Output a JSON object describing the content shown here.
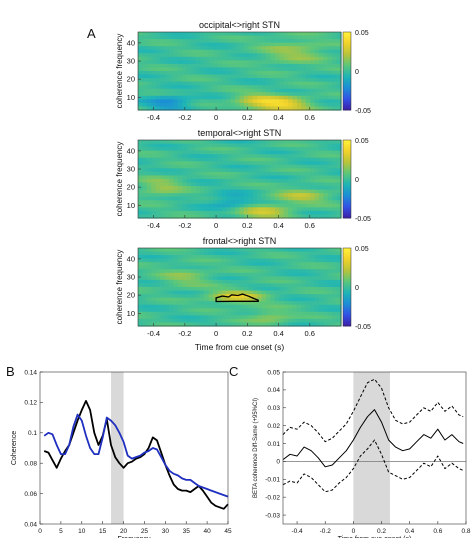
{
  "figure": {
    "panel_labels": [
      "A",
      "B",
      "C"
    ],
    "heatmap_colorbar": {
      "ticks": [
        "0.05",
        "0",
        "-0.05"
      ],
      "colormap": [
        "#3b1fa8",
        "#3352e6",
        "#1c8ed6",
        "#1fb5b5",
        "#5cc77a",
        "#b9c43a",
        "#f2d22b",
        "#fff23a"
      ]
    }
  },
  "chart_data": [
    {
      "type": "heatmap",
      "title": "occipital<>right STN",
      "ylabel": "coherence frequency",
      "xlabel": "",
      "x_ticks": [
        "-0.4",
        "-0.2",
        "0",
        "0.2",
        "0.4",
        "0.6"
      ],
      "x_range": [
        -0.5,
        0.8
      ],
      "y_ticks": [
        "10",
        "20",
        "30",
        "40"
      ],
      "y_range": [
        3,
        46
      ],
      "clim": [
        -0.05,
        0.05
      ],
      "blobs": [
        {
          "x": 0.42,
          "y": 6,
          "amp": 0.035,
          "sx": 0.12,
          "sy": 3
        },
        {
          "x": 0.25,
          "y": 8,
          "amp": 0.02,
          "sx": 0.1,
          "sy": 3
        },
        {
          "x": -0.3,
          "y": 7,
          "amp": -0.02,
          "sx": 0.1,
          "sy": 3
        },
        {
          "x": 0.5,
          "y": 35,
          "amp": 0.015,
          "sx": 0.15,
          "sy": 5
        }
      ]
    },
    {
      "type": "heatmap",
      "title": "temporal<>right STN",
      "ylabel": "coherence frequency",
      "xlabel": "",
      "x_ticks": [
        "-0.4",
        "-0.2",
        "0",
        "0.2",
        "0.4",
        "0.6"
      ],
      "x_range": [
        -0.5,
        0.8
      ],
      "y_ticks": [
        "10",
        "20",
        "30",
        "40"
      ],
      "y_range": [
        3,
        46
      ],
      "clim": [
        -0.05,
        0.05
      ],
      "blobs": [
        {
          "x": 0.3,
          "y": 6,
          "amp": 0.025,
          "sx": 0.12,
          "sy": 3
        },
        {
          "x": 0.55,
          "y": 15,
          "amp": 0.02,
          "sx": 0.12,
          "sy": 3
        },
        {
          "x": -0.35,
          "y": 20,
          "amp": 0.015,
          "sx": 0.1,
          "sy": 4
        },
        {
          "x": 0.1,
          "y": 12,
          "amp": -0.015,
          "sx": 0.1,
          "sy": 3
        }
      ]
    },
    {
      "type": "heatmap",
      "title": "frontal<>right STN",
      "ylabel": "coherence frequency",
      "xlabel": "Time from cue onset (s)",
      "x_ticks": [
        "-0.4",
        "-0.2",
        "0",
        "0.2",
        "0.4",
        "0.6"
      ],
      "x_range": [
        -0.5,
        0.8
      ],
      "y_ticks": [
        "10",
        "20",
        "30",
        "40"
      ],
      "y_range": [
        3,
        46
      ],
      "clim": [
        -0.05,
        0.05
      ],
      "blobs": [
        {
          "x": 0.13,
          "y": 19,
          "amp": 0.03,
          "sx": 0.12,
          "sy": 2.5
        },
        {
          "x": 0.35,
          "y": 8,
          "amp": 0.015,
          "sx": 0.1,
          "sy": 3
        },
        {
          "x": -0.2,
          "y": 30,
          "amp": 0.012,
          "sx": 0.12,
          "sy": 4
        }
      ],
      "contour": [
        [
          0.0,
          16.5
        ],
        [
          0.0,
          18.5
        ],
        [
          0.04,
          19.5
        ],
        [
          0.08,
          19.0
        ],
        [
          0.1,
          20.2
        ],
        [
          0.14,
          19.8
        ],
        [
          0.17,
          20.6
        ],
        [
          0.21,
          19.4
        ],
        [
          0.24,
          18.2
        ],
        [
          0.27,
          17.2
        ],
        [
          0.27,
          16.6
        ],
        [
          0.12,
          16.6
        ]
      ]
    },
    {
      "type": "line",
      "xlabel": "Frequency",
      "ylabel": "Coherence",
      "x_ticks": [
        "0",
        "5",
        "10",
        "15",
        "20",
        "25",
        "30",
        "35",
        "40",
        "45"
      ],
      "y_ticks": [
        "0.04",
        "0.06",
        "0.08",
        "0.1",
        "0.12",
        "0.14"
      ],
      "xlim": [
        0,
        45
      ],
      "ylim": [
        0.04,
        0.14
      ],
      "shaded_x": [
        17,
        20
      ],
      "series": [
        {
          "color": "#000000",
          "x": [
            1,
            2,
            3,
            4,
            5,
            6,
            7,
            8,
            9,
            10,
            11,
            12,
            13,
            14,
            15,
            16,
            17,
            18,
            19,
            20,
            21,
            22,
            23,
            24,
            25,
            26,
            27,
            28,
            29,
            30,
            31,
            32,
            33,
            34,
            35,
            36,
            37,
            38,
            39,
            40,
            41,
            42,
            43,
            44,
            45
          ],
          "values": [
            0.088,
            0.087,
            0.082,
            0.077,
            0.083,
            0.088,
            0.092,
            0.1,
            0.108,
            0.115,
            0.121,
            0.115,
            0.1,
            0.092,
            0.098,
            0.109,
            0.092,
            0.084,
            0.08,
            0.077,
            0.08,
            0.081,
            0.083,
            0.084,
            0.086,
            0.09,
            0.097,
            0.095,
            0.087,
            0.079,
            0.072,
            0.066,
            0.063,
            0.062,
            0.062,
            0.061,
            0.063,
            0.065,
            0.062,
            0.058,
            0.054,
            0.052,
            0.051,
            0.05,
            0.053
          ]
        },
        {
          "color": "#1f2fbf",
          "x": [
            1,
            2,
            3,
            4,
            5,
            6,
            7,
            8,
            9,
            10,
            11,
            12,
            13,
            14,
            15,
            16,
            17,
            18,
            19,
            20,
            21,
            22,
            23,
            24,
            25,
            26,
            27,
            28,
            29,
            30,
            31,
            32,
            33,
            34,
            35,
            36,
            37,
            38,
            39,
            40,
            41,
            42,
            43,
            44,
            45
          ],
          "values": [
            0.098,
            0.1,
            0.099,
            0.092,
            0.086,
            0.086,
            0.092,
            0.104,
            0.112,
            0.108,
            0.098,
            0.09,
            0.086,
            0.086,
            0.097,
            0.11,
            0.108,
            0.105,
            0.1,
            0.094,
            0.085,
            0.083,
            0.084,
            0.085,
            0.087,
            0.088,
            0.09,
            0.089,
            0.084,
            0.079,
            0.075,
            0.073,
            0.072,
            0.07,
            0.069,
            0.069,
            0.067,
            0.065,
            0.064,
            0.063,
            0.062,
            0.061,
            0.06,
            0.059,
            0.058
          ]
        }
      ]
    },
    {
      "type": "line",
      "xlabel": "Time from cue onset (s)",
      "ylabel": "BETA coherence Diff-Same (+95%CI)",
      "x_ticks": [
        "-0.4",
        "-0.2",
        "0",
        "0.2",
        "0.4",
        "0.6",
        "0.8"
      ],
      "y_ticks": [
        "-0.03",
        "-0.02",
        "-0.01",
        "0",
        "0.01",
        "0.02",
        "0.03",
        "0.04",
        "0.05"
      ],
      "xlim": [
        -0.5,
        0.8
      ],
      "ylim": [
        -0.035,
        0.05
      ],
      "shaded_x": [
        0.0,
        0.26
      ],
      "zero_line": 0,
      "series": [
        {
          "style": "solid",
          "x": [
            -0.5,
            -0.45,
            -0.4,
            -0.35,
            -0.3,
            -0.25,
            -0.2,
            -0.15,
            -0.1,
            -0.05,
            0.0,
            0.05,
            0.1,
            0.15,
            0.2,
            0.25,
            0.3,
            0.35,
            0.4,
            0.45,
            0.5,
            0.55,
            0.6,
            0.65,
            0.7,
            0.75,
            0.78
          ],
          "values": [
            0.001,
            0.004,
            0.003,
            0.008,
            0.006,
            0.002,
            -0.003,
            -0.002,
            0.002,
            0.006,
            0.012,
            0.019,
            0.025,
            0.029,
            0.022,
            0.012,
            0.008,
            0.006,
            0.007,
            0.011,
            0.015,
            0.013,
            0.018,
            0.012,
            0.015,
            0.011,
            0.01
          ]
        },
        {
          "style": "dashed",
          "x": [
            -0.5,
            -0.45,
            -0.4,
            -0.35,
            -0.3,
            -0.25,
            -0.2,
            -0.15,
            -0.1,
            -0.05,
            0.0,
            0.05,
            0.1,
            0.15,
            0.2,
            0.25,
            0.3,
            0.35,
            0.4,
            0.45,
            0.5,
            0.55,
            0.6,
            0.65,
            0.7,
            0.75,
            0.78
          ],
          "values": [
            0.015,
            0.019,
            0.018,
            0.022,
            0.02,
            0.016,
            0.011,
            0.013,
            0.017,
            0.021,
            0.028,
            0.036,
            0.044,
            0.046,
            0.041,
            0.03,
            0.023,
            0.021,
            0.022,
            0.026,
            0.03,
            0.028,
            0.033,
            0.028,
            0.031,
            0.026,
            0.025
          ]
        },
        {
          "style": "dashed",
          "x": [
            -0.5,
            -0.45,
            -0.4,
            -0.35,
            -0.3,
            -0.25,
            -0.2,
            -0.15,
            -0.1,
            -0.05,
            0.0,
            0.05,
            0.1,
            0.15,
            0.2,
            0.25,
            0.3,
            0.35,
            0.4,
            0.45,
            0.5,
            0.55,
            0.6,
            0.65,
            0.7,
            0.75,
            0.78
          ],
          "values": [
            -0.013,
            -0.011,
            -0.012,
            -0.007,
            -0.009,
            -0.013,
            -0.017,
            -0.016,
            -0.012,
            -0.009,
            -0.004,
            0.003,
            0.007,
            0.012,
            0.004,
            -0.006,
            -0.008,
            -0.01,
            -0.009,
            -0.005,
            -0.001,
            -0.003,
            0.003,
            -0.004,
            -0.001,
            -0.004,
            -0.005
          ]
        }
      ]
    }
  ]
}
